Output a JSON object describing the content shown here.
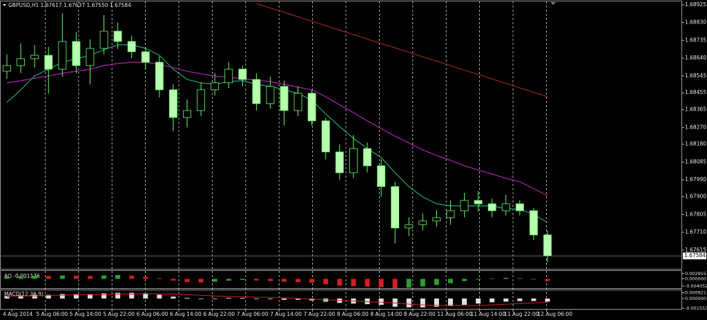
{
  "chart_data": {
    "type": "candlestick",
    "title": "GBPUSD,H1 1.67617 1.67637 1.67550 1.67584",
    "xticks": [
      "4 Aug 2014",
      "5 Aug 06:00",
      "5 Aug 14:00",
      "5 Aug 22:00",
      "6 Aug 06:00",
      "6 Aug 14:00",
      "6 Aug 22:00",
      "7 Aug 06:00",
      "7 Aug 14:00",
      "7 Aug 22:00",
      "8 Aug 06:00",
      "8 Aug 14:00",
      "8 Aug 22:00",
      "11 Aug 06:00",
      "11 Aug 14:00",
      "11 Aug 22:00",
      "12 Aug 06:00"
    ],
    "open": [
      1.6857,
      1.686,
      1.68637,
      1.68655,
      1.68581,
      1.68729,
      1.686,
      1.68692,
      1.68784,
      1.68729,
      1.68674,
      1.68618,
      1.68471,
      1.68323,
      1.6836,
      1.68471,
      1.68508,
      1.68581,
      1.68526,
      1.68397,
      1.68489,
      1.6836,
      1.68452,
      1.68305,
      1.68139,
      1.68028,
      1.68157,
      1.68065,
      1.67954,
      1.67733,
      1.67751,
      1.6777,
      1.67788,
      1.67825,
      1.6788,
      1.67862,
      1.67825,
      1.67862,
      1.67825,
      1.67696
    ],
    "high": [
      1.6866,
      1.6872,
      1.6871,
      1.687,
      1.6888,
      1.6878,
      1.6874,
      1.6887,
      1.6883,
      1.6876,
      1.687,
      1.6865,
      1.685,
      1.6842,
      1.6851,
      1.6856,
      1.6862,
      1.686,
      1.6856,
      1.6854,
      1.6852,
      1.6849,
      1.6847,
      1.6832,
      1.6818,
      1.6823,
      1.6819,
      1.681,
      1.6798,
      1.6779,
      1.6781,
      1.6783,
      1.6788,
      1.6792,
      1.6793,
      1.6789,
      1.6791,
      1.6788,
      1.6784,
      1.6772
    ],
    "low": [
      1.6853,
      1.6856,
      1.6859,
      1.6845,
      1.6854,
      1.6856,
      1.685,
      1.6866,
      1.6869,
      1.6864,
      1.6858,
      1.6843,
      1.6825,
      1.6827,
      1.6833,
      1.6844,
      1.6848,
      1.6849,
      1.6836,
      1.6837,
      1.6828,
      1.6833,
      1.6828,
      1.681,
      1.6799,
      1.68,
      1.6803,
      1.679,
      1.6765,
      1.6769,
      1.6772,
      1.6774,
      1.6775,
      1.6779,
      1.6782,
      1.6779,
      1.678,
      1.678,
      1.6767,
      1.6755
    ],
    "close": [
      1.686,
      1.68637,
      1.68655,
      1.68581,
      1.68729,
      1.686,
      1.68692,
      1.68784,
      1.68729,
      1.68674,
      1.68618,
      1.68471,
      1.68323,
      1.6836,
      1.68471,
      1.68508,
      1.68581,
      1.68526,
      1.68397,
      1.68489,
      1.6836,
      1.68452,
      1.68305,
      1.68139,
      1.68028,
      1.68157,
      1.68065,
      1.67954,
      1.67733,
      1.67751,
      1.6777,
      1.67788,
      1.67825,
      1.6788,
      1.67862,
      1.67825,
      1.67862,
      1.67825,
      1.67696,
      1.67584
    ],
    "up_color": "#000000",
    "down_color": "#b8ffb0",
    "candle_outline": "#66ff66",
    "series": [
      {
        "color": "#1fa37a",
        "values": [
          1.68404,
          1.68471,
          1.68545,
          1.68581,
          1.68618,
          1.68637,
          1.68655,
          1.68685,
          1.68711,
          1.68711,
          1.68692,
          1.68655,
          1.68581,
          1.68526,
          1.68508,
          1.685,
          1.68515,
          1.68519,
          1.685,
          1.68489,
          1.68471,
          1.68452,
          1.68415,
          1.68342,
          1.68275,
          1.68212,
          1.68157,
          1.68109,
          1.68028,
          1.67954,
          1.67899,
          1.67862,
          1.67851,
          1.67851,
          1.67851,
          1.67851,
          1.67836,
          1.67832,
          1.67806,
          1.67762
        ]
      },
      {
        "color": "#b020b0",
        "values": [
          1.68508,
          1.68519,
          1.68533,
          1.68545,
          1.68559,
          1.6857,
          1.68581,
          1.686,
          1.68611,
          1.68618,
          1.68618,
          1.68607,
          1.68589,
          1.6857,
          1.68556,
          1.68545,
          1.68537,
          1.6853,
          1.68522,
          1.68515,
          1.685,
          1.68485,
          1.68471,
          1.68434,
          1.6839,
          1.68349,
          1.68305,
          1.68264,
          1.68223,
          1.68187,
          1.6815,
          1.6812,
          1.68094,
          1.68065,
          1.68043,
          1.68021,
          1.67998,
          1.6798,
          1.67943,
          1.67906
        ]
      },
      {
        "color": "#8b2a1a",
        "values": [
          null,
          null,
          null,
          null,
          null,
          null,
          null,
          null,
          null,
          null,
          null,
          null,
          null,
          null,
          null,
          null,
          null,
          null,
          1.68932,
          1.68908,
          1.68884,
          1.68861,
          1.68837,
          1.68813,
          1.6879,
          1.68766,
          1.68742,
          1.68718,
          1.68695,
          1.68671,
          1.68647,
          1.68624,
          1.686,
          1.68576,
          1.68553,
          1.68529,
          1.68505,
          1.68481,
          1.68458,
          1.68434
        ]
      }
    ],
    "ylim": [
      1.67511,
      1.68943
    ],
    "yticks": [
      1.68925,
      {
        "value": 1.6883,
        "label": "1.68830"
      },
      1.68735,
      {
        "value": 1.6864,
        "label": "1.68640"
      },
      1.68545,
      1.68455,
      1.68365,
      {
        "value": 1.6827,
        "label": "1.68270"
      },
      {
        "value": 1.6818,
        "label": "1.68180"
      },
      1.68085,
      {
        "value": 1.6799,
        "label": "1.67990"
      },
      {
        "value": 1.679,
        "label": "1.67900"
      },
      1.67805,
      {
        "value": 1.6771,
        "label": "1.67710"
      },
      1.67615
    ],
    "last_price": 1.67584,
    "grid": true,
    "indicators": [
      {
        "label": "AO -0.001176",
        "up_color": "#2e9e2e",
        "down_color": "#d02020",
        "ylim": [
          -0.0052,
          0.0044
        ],
        "yticks": [
          0.002955,
          {
            "value": 0,
            "label": "0.000000"
          },
          -0.004052
        ],
        "values": [
          0.0012,
          0.0015,
          0.0018,
          0.0016,
          0.0019,
          0.0017,
          0.0016,
          0.0019,
          0.0021,
          0.0018,
          0.0012,
          0.0004,
          -0.001,
          -0.0018,
          -0.002,
          -0.0016,
          -0.001,
          -0.0006,
          -0.0009,
          -0.0012,
          -0.0016,
          -0.0018,
          -0.0022,
          -0.003,
          -0.0038,
          -0.0041,
          -0.0043,
          -0.0046,
          -0.0052,
          -0.0049,
          -0.0042,
          -0.0034,
          -0.0024,
          -0.0012,
          -0.0004,
          0.0003,
          0.0006,
          0.0004,
          -0.0004,
          -0.001176
        ]
      },
      {
        "label": "MACD(12,26,9)",
        "color": "#e0e0e0",
        "signal_color": "#d02020",
        "ylim": [
          -0.00165,
          0.0013
        ],
        "yticks": [
          0.000921,
          {
            "value": 0,
            "label": "0.000000"
          },
          -0.001553
        ],
        "values": [
          0.0004,
          0.0005,
          0.0006,
          0.0006,
          0.0007,
          0.0007,
          0.0007,
          0.0008,
          0.0009,
          0.0009,
          0.0008,
          0.0006,
          0.0003,
          0.0001,
          0,
          0,
          0.0001,
          0.0001,
          0,
          -0.0001,
          -0.0002,
          -0.0002,
          -0.0003,
          -0.0005,
          -0.0007,
          -0.0008,
          -0.0009,
          -0.001,
          -0.0013,
          -0.0014,
          -0.0014,
          -0.0013,
          -0.0012,
          -0.001,
          -0.0008,
          -0.0006,
          -0.0005,
          -0.0004,
          -0.0004,
          -0.0005
        ],
        "signal": [
          0.0003,
          0.0004,
          0.0004,
          0.0005,
          0.0005,
          0.0006,
          0.0006,
          0.0006,
          0.0007,
          0.0007,
          0.0008,
          0.0007,
          0.0007,
          0.0006,
          0.0005,
          0.0004,
          0.0003,
          0.0003,
          0.0002,
          0.0002,
          0.0001,
          0,
          -0.0001,
          -0.0002,
          -0.0003,
          -0.0004,
          -0.0005,
          -0.0006,
          -0.0007,
          -0.0009,
          -0.001,
          -0.0011,
          -0.0011,
          -0.0011,
          -0.0011,
          -0.001,
          -0.0009,
          -0.0008,
          -0.0007,
          -0.0006
        ]
      }
    ]
  }
}
